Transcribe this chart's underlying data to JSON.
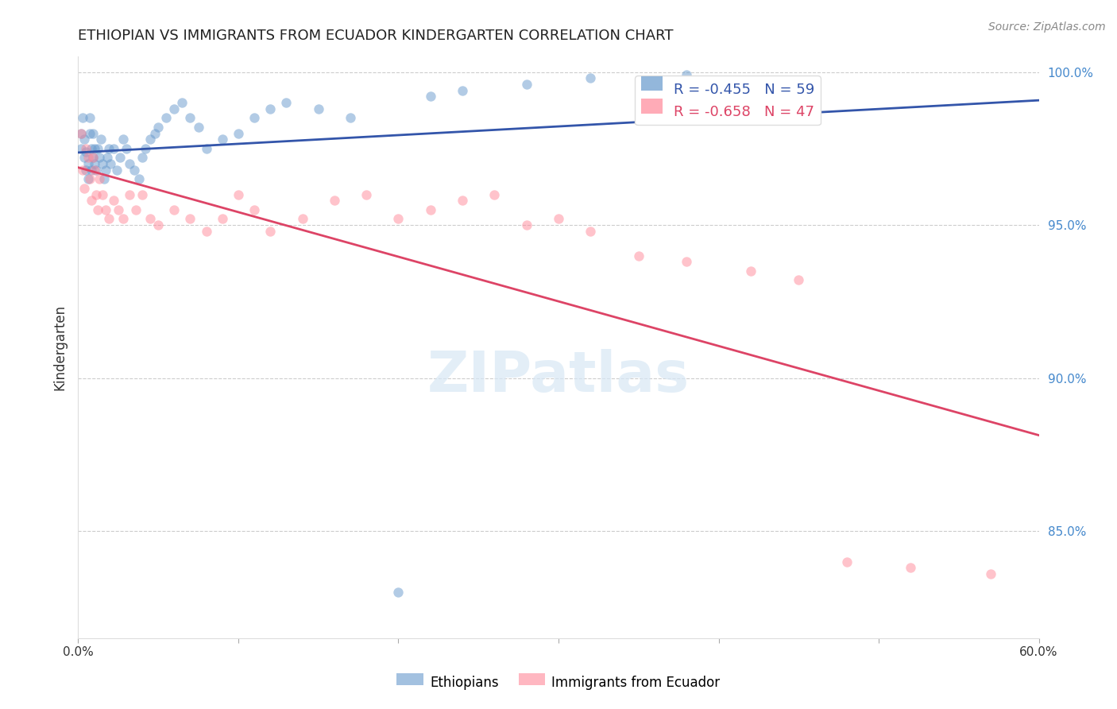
{
  "title": "ETHIOPIAN VS IMMIGRANTS FROM ECUADOR KINDERGARTEN CORRELATION CHART",
  "source": "Source: ZipAtlas.com",
  "xlabel": "",
  "ylabel": "Kindergarten",
  "x_min": 0.0,
  "x_max": 0.6,
  "y_min": 0.815,
  "y_max": 1.005,
  "y_ticks": [
    0.85,
    0.9,
    0.95,
    1.0
  ],
  "y_tick_labels": [
    "85.0%",
    "90.0%",
    "95.0%",
    "100.0%"
  ],
  "x_ticks": [
    0.0,
    0.1,
    0.2,
    0.3,
    0.4,
    0.5,
    0.6
  ],
  "x_tick_labels": [
    "0.0%",
    "",
    "",
    "",
    "",
    "",
    "60.0%"
  ],
  "legend_blue_label": "Ethiopians",
  "legend_pink_label": "Immigrants from Ecuador",
  "R_blue": -0.455,
  "N_blue": 59,
  "R_pink": -0.658,
  "N_pink": 47,
  "watermark": "ZIPatlas",
  "background_color": "#ffffff",
  "blue_color": "#6699cc",
  "pink_color": "#ff8899",
  "blue_line_color": "#3355aa",
  "pink_line_color": "#dd4466",
  "scatter_alpha": 0.5,
  "scatter_size": 80,
  "blue_points_x": [
    0.002,
    0.002,
    0.003,
    0.004,
    0.004,
    0.005,
    0.005,
    0.006,
    0.006,
    0.007,
    0.007,
    0.008,
    0.008,
    0.009,
    0.009,
    0.01,
    0.01,
    0.011,
    0.012,
    0.013,
    0.014,
    0.015,
    0.016,
    0.017,
    0.018,
    0.019,
    0.02,
    0.022,
    0.024,
    0.026,
    0.028,
    0.03,
    0.032,
    0.035,
    0.038,
    0.04,
    0.042,
    0.045,
    0.048,
    0.05,
    0.055,
    0.06,
    0.065,
    0.07,
    0.075,
    0.08,
    0.09,
    0.1,
    0.11,
    0.12,
    0.13,
    0.15,
    0.17,
    0.2,
    0.22,
    0.24,
    0.28,
    0.32,
    0.38
  ],
  "blue_points_y": [
    0.98,
    0.975,
    0.985,
    0.972,
    0.978,
    0.968,
    0.974,
    0.97,
    0.965,
    0.985,
    0.98,
    0.975,
    0.968,
    0.972,
    0.98,
    0.975,
    0.97,
    0.968,
    0.975,
    0.972,
    0.978,
    0.97,
    0.965,
    0.968,
    0.972,
    0.975,
    0.97,
    0.975,
    0.968,
    0.972,
    0.978,
    0.975,
    0.97,
    0.968,
    0.965,
    0.972,
    0.975,
    0.978,
    0.98,
    0.982,
    0.985,
    0.988,
    0.99,
    0.985,
    0.982,
    0.975,
    0.978,
    0.98,
    0.985,
    0.988,
    0.99,
    0.988,
    0.985,
    0.83,
    0.992,
    0.994,
    0.996,
    0.998,
    0.999
  ],
  "pink_points_x": [
    0.002,
    0.003,
    0.004,
    0.005,
    0.006,
    0.007,
    0.008,
    0.009,
    0.01,
    0.011,
    0.012,
    0.013,
    0.015,
    0.017,
    0.019,
    0.022,
    0.025,
    0.028,
    0.032,
    0.036,
    0.04,
    0.045,
    0.05,
    0.06,
    0.07,
    0.08,
    0.09,
    0.1,
    0.11,
    0.12,
    0.14,
    0.16,
    0.18,
    0.2,
    0.22,
    0.24,
    0.26,
    0.28,
    0.3,
    0.32,
    0.35,
    0.38,
    0.42,
    0.45,
    0.48,
    0.52,
    0.57
  ],
  "pink_points_y": [
    0.98,
    0.968,
    0.962,
    0.975,
    0.972,
    0.965,
    0.958,
    0.972,
    0.968,
    0.96,
    0.955,
    0.965,
    0.96,
    0.955,
    0.952,
    0.958,
    0.955,
    0.952,
    0.96,
    0.955,
    0.96,
    0.952,
    0.95,
    0.955,
    0.952,
    0.948,
    0.952,
    0.96,
    0.955,
    0.948,
    0.952,
    0.958,
    0.96,
    0.952,
    0.955,
    0.958,
    0.96,
    0.95,
    0.952,
    0.948,
    0.94,
    0.938,
    0.935,
    0.932,
    0.84,
    0.838,
    0.836
  ]
}
